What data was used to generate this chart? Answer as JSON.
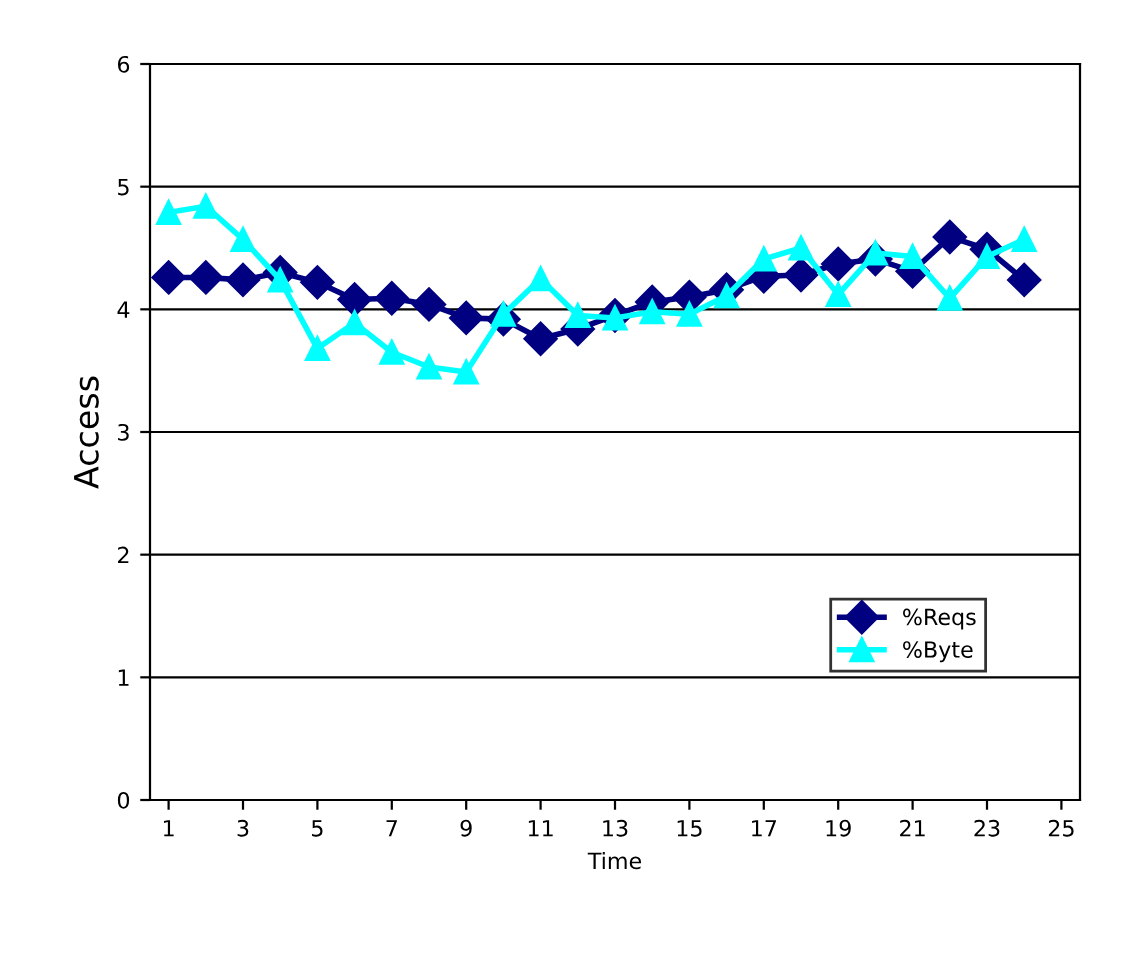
{
  "chart_data": {
    "type": "line",
    "xlabel": "Time",
    "ylabel": "Access",
    "x": [
      1,
      2,
      3,
      4,
      5,
      6,
      7,
      8,
      9,
      10,
      11,
      12,
      13,
      14,
      15,
      16,
      17,
      18,
      19,
      20,
      21,
      22,
      23,
      24
    ],
    "series": [
      {
        "name": "%Reqs",
        "color": "#000080",
        "marker": "diamond",
        "values": [
          4.26,
          4.26,
          4.24,
          4.3,
          4.22,
          4.08,
          4.09,
          4.04,
          3.93,
          3.92,
          3.76,
          3.84,
          3.95,
          4.06,
          4.1,
          4.16,
          4.27,
          4.28,
          4.37,
          4.41,
          4.31,
          4.59,
          4.49,
          4.24
        ]
      },
      {
        "name": "%Byte",
        "color": "#00ffff",
        "marker": "triangle",
        "values": [
          4.79,
          4.84,
          4.57,
          4.24,
          3.68,
          3.89,
          3.65,
          3.53,
          3.49,
          3.96,
          4.25,
          3.95,
          3.93,
          3.98,
          3.96,
          4.11,
          4.41,
          4.5,
          4.12,
          4.46,
          4.43,
          4.09,
          4.43,
          4.57
        ]
      }
    ],
    "xlim": [
      0.5,
      25.5
    ],
    "xticks": [
      1,
      3,
      5,
      7,
      9,
      11,
      13,
      15,
      17,
      19,
      21,
      23,
      25
    ],
    "ylim": [
      0,
      6
    ],
    "yticks": [
      0,
      1,
      2,
      3,
      4,
      5,
      6
    ],
    "grid": "y",
    "legend": "bottom right"
  }
}
